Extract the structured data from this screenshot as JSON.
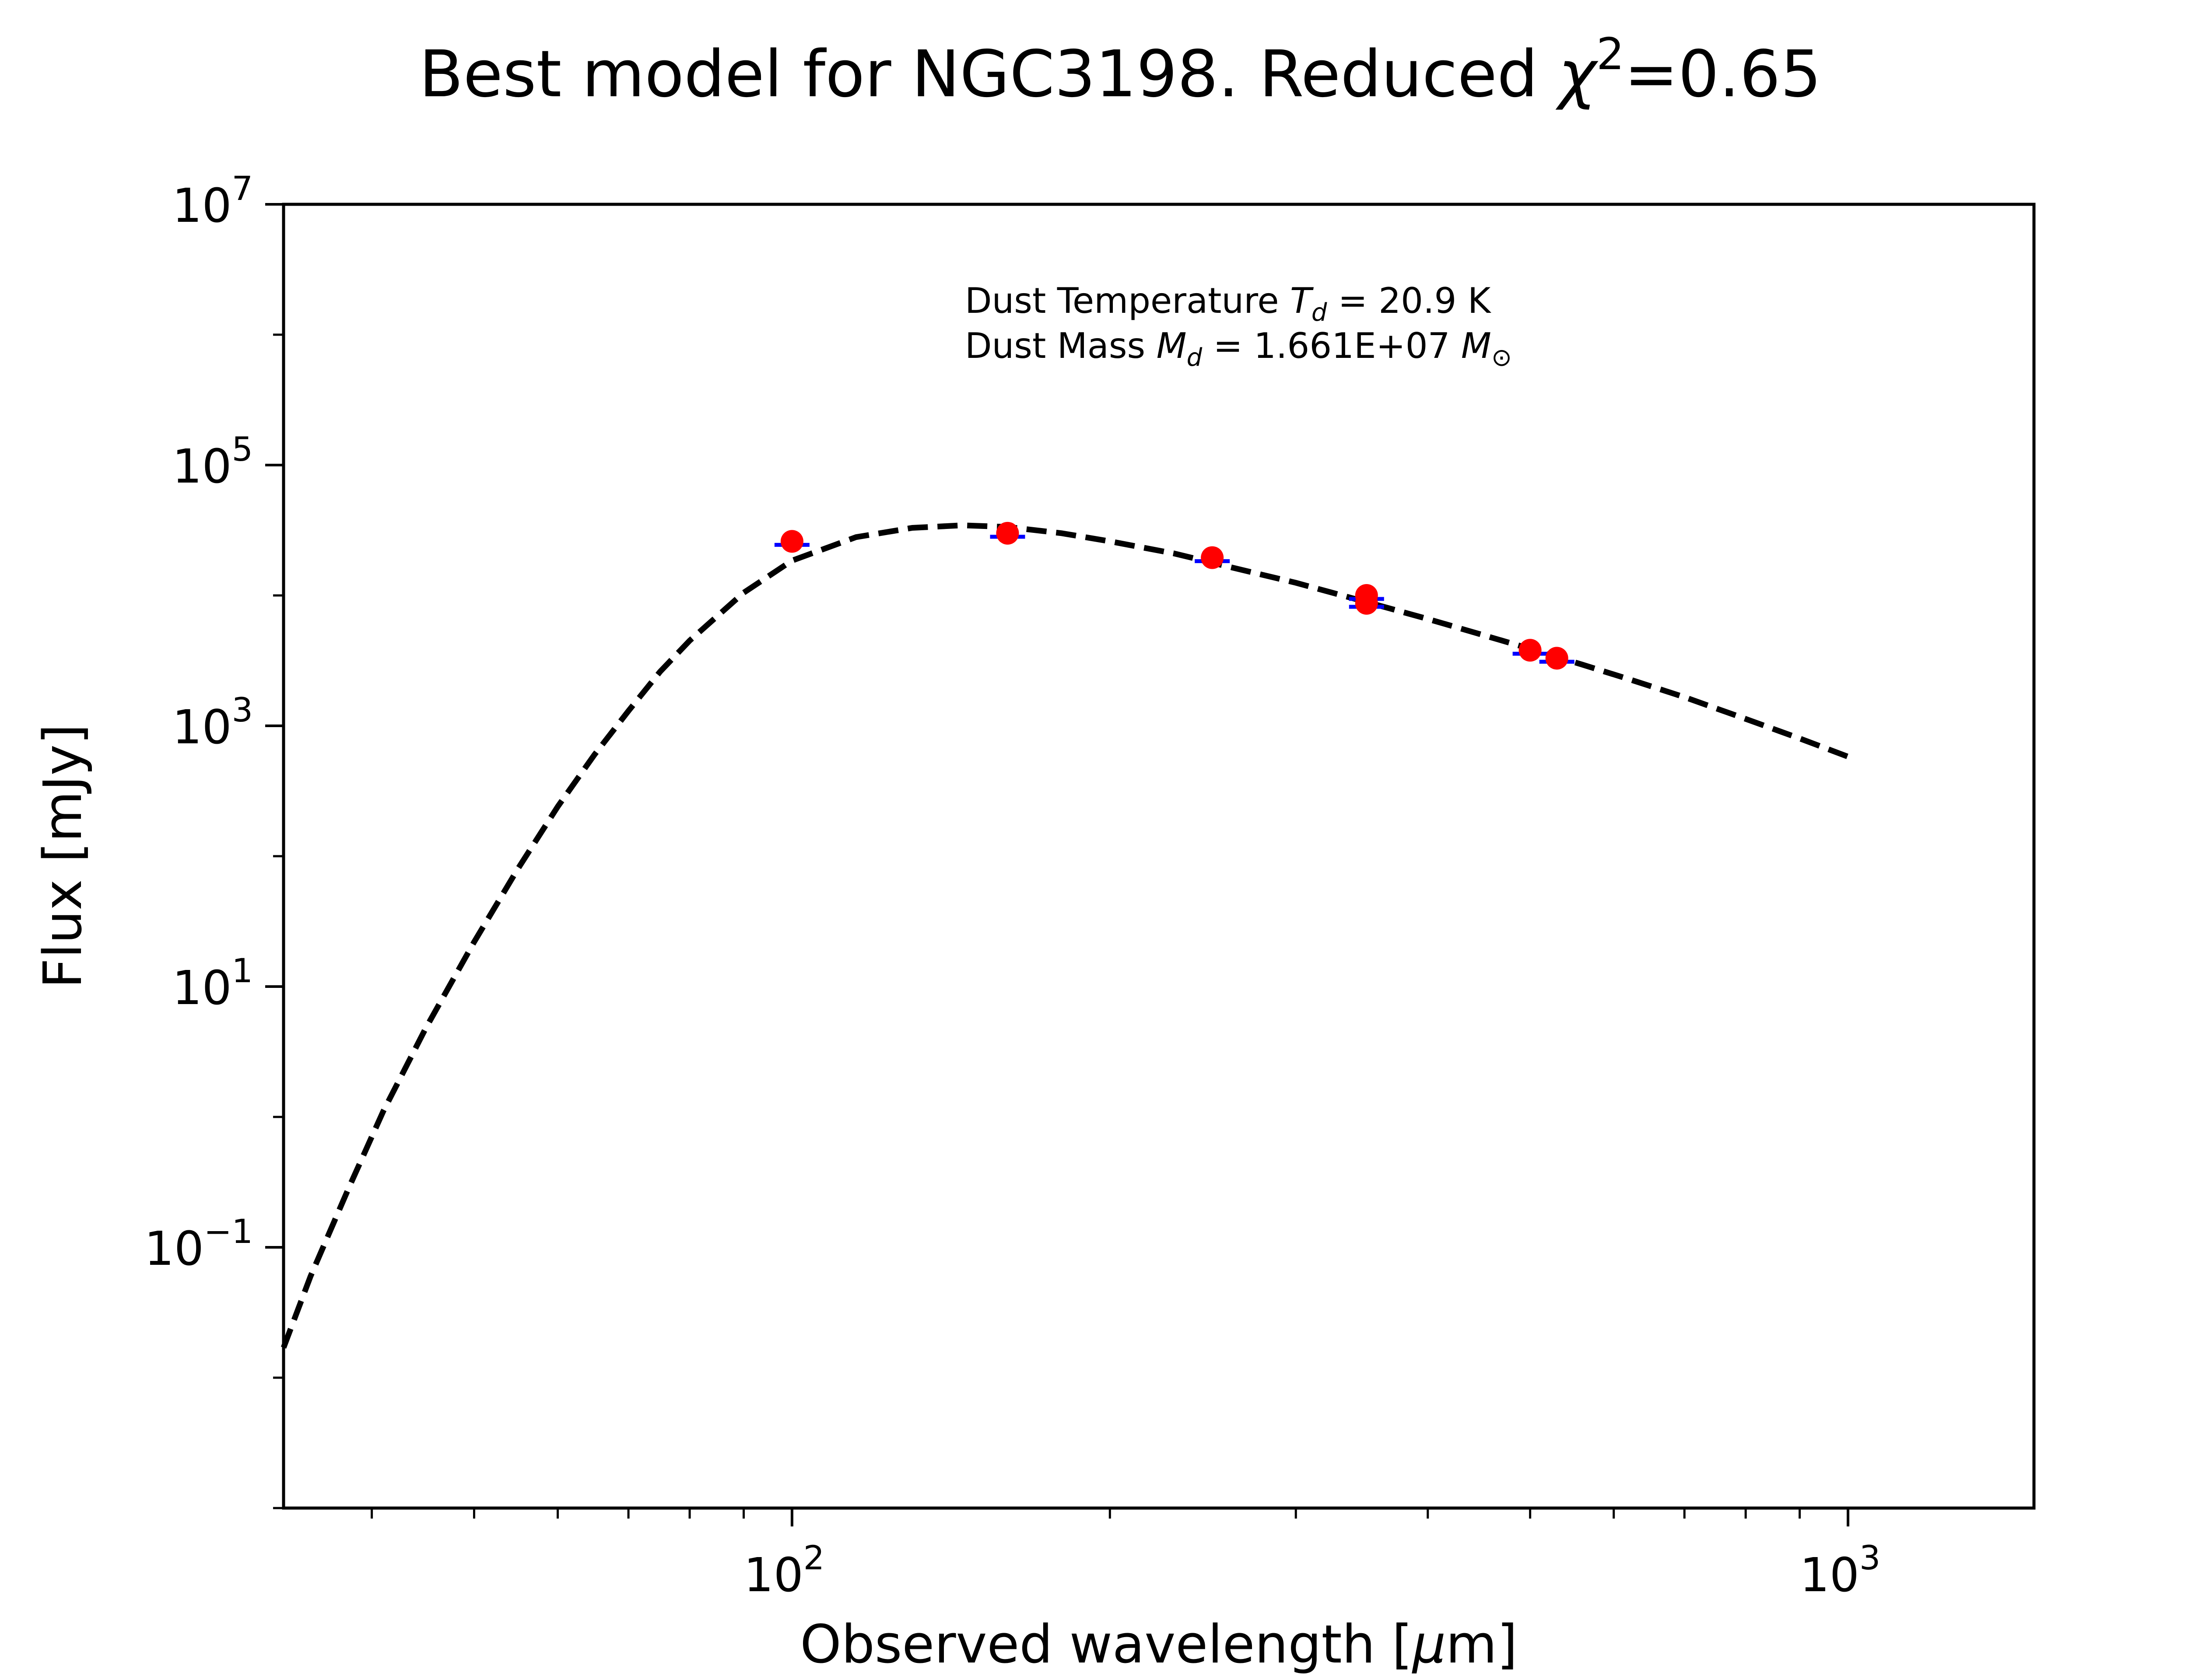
{
  "chart_data": {
    "type": "scatter",
    "title": {
      "prefix": "Best model for NGC3198. Reduced ",
      "chi": "χ",
      "chi_exp": "2",
      "suffix": "=0.65"
    },
    "xlabel": {
      "prefix": "Observed wavelength [",
      "mu": "μ",
      "suffix": "m]"
    },
    "ylabel": "Flux [mJy]",
    "xscale": "log",
    "yscale": "log",
    "xlim": [
      33,
      1500
    ],
    "ylim": [
      0.001,
      10000000
    ],
    "grid": false,
    "legend": "none",
    "x_ticks": [
      {
        "value": 100,
        "base": "10",
        "exp": "2"
      },
      {
        "value": 1000,
        "base": "10",
        "exp": "3"
      }
    ],
    "y_ticks": [
      {
        "value": 0.1,
        "base": "10",
        "exp": "−1"
      },
      {
        "value": 10,
        "base": "10",
        "exp": "1"
      },
      {
        "value": 1000,
        "base": "10",
        "exp": "3"
      },
      {
        "value": 100000,
        "base": "10",
        "exp": "5"
      },
      {
        "value": 10000000,
        "base": "10",
        "exp": "7"
      }
    ],
    "annotation": {
      "line1": {
        "prefix": "Dust Temperature ",
        "sym": "T",
        "sub": "d",
        "suffix": " = 20.9 K"
      },
      "line2": {
        "prefix": "Dust Mass ",
        "sym": "M",
        "sub": "d",
        "value": " = 1.661E+07 ",
        "unit_sym": "M",
        "unit_sub": "⊙"
      }
    },
    "series": [
      {
        "kind": "model",
        "style": "dashed",
        "color": "#000000",
        "x": [
          33,
          35,
          38,
          41,
          45,
          50,
          55,
          60,
          65,
          70,
          75,
          80,
          90,
          100,
          115,
          130,
          145,
          160,
          180,
          200,
          230,
          260,
          300,
          350,
          400,
          450,
          500,
          560,
          620,
          700,
          800,
          900,
          1000
        ],
        "y": [
          0.017,
          0.06,
          0.28,
          1.1,
          4.8,
          22,
          80,
          240,
          600,
          1300,
          2600,
          4500,
          10500,
          18500,
          28000,
          33000,
          34500,
          33500,
          30000,
          26000,
          21000,
          16500,
          12500,
          8900,
          6600,
          5000,
          3900,
          2950,
          2280,
          1660,
          1130,
          800,
          580
        ]
      },
      {
        "kind": "observed",
        "color": "#ff0000",
        "errorbar_color": "#0000ff",
        "x": [
          100,
          160,
          250,
          350,
          350,
          500,
          530
        ],
        "y": [
          26000,
          30000,
          19500,
          10000,
          8700,
          3800,
          3300
        ]
      }
    ]
  }
}
